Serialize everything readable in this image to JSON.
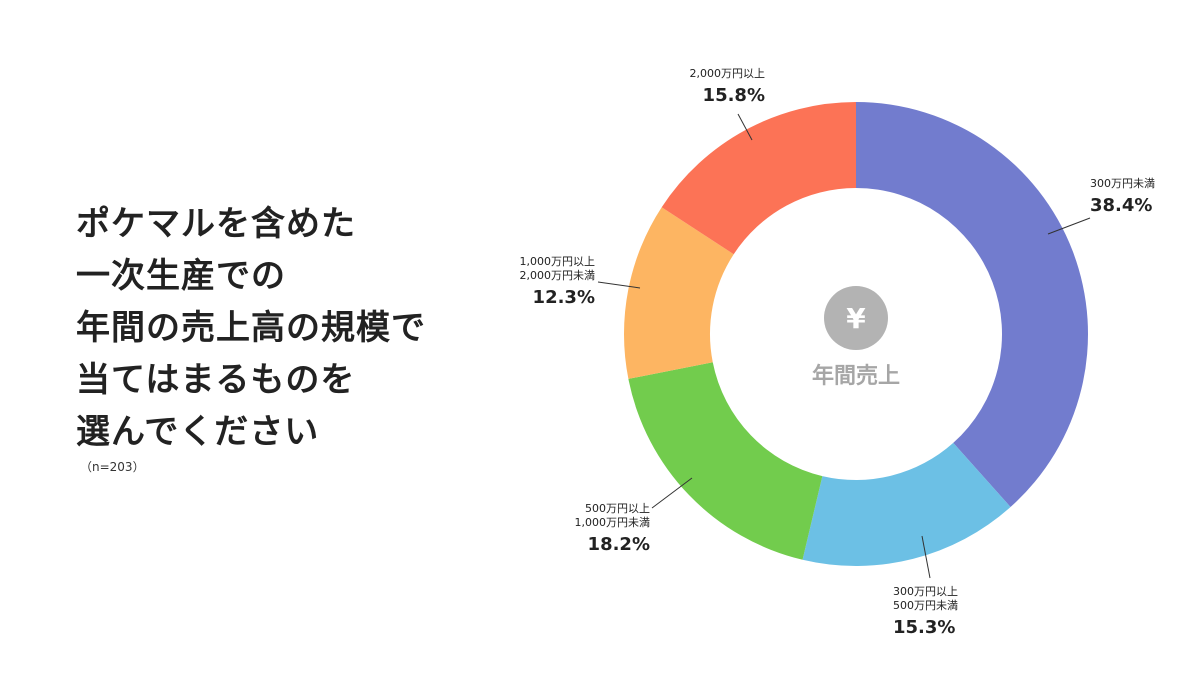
{
  "question": {
    "lines": [
      "ポケマルを含めた",
      "一次生産での",
      "年間の売上高の規模で",
      "当てはまるものを",
      "選んでください"
    ],
    "sample_note": "（n=203）"
  },
  "chart_data": {
    "type": "pie",
    "center_label": "年間売上",
    "center_icon": "yen-icon",
    "categories": [
      [
        "300万円未満"
      ],
      [
        "300万円以上",
        "500万円未満"
      ],
      [
        "500万円以上",
        "1,000万円未満"
      ],
      [
        "1,000万円以上",
        "2,000万円未満"
      ],
      [
        "2,000万円以上"
      ]
    ],
    "values": [
      38.4,
      15.3,
      18.2,
      12.3,
      15.8
    ],
    "value_labels": [
      "38.4%",
      "15.3%",
      "18.2%",
      "12.3%",
      "15.8%"
    ],
    "colors": [
      "#727cce",
      "#6cc0e5",
      "#72cc4d",
      "#fdb562",
      "#fc7356"
    ],
    "center_icon_color": "#b3b3b3"
  }
}
